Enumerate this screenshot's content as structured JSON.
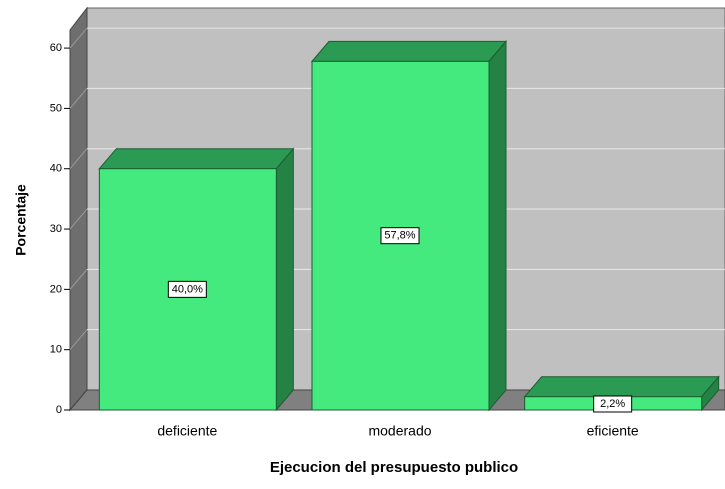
{
  "chart_data": {
    "type": "bar3d",
    "categories": [
      "deficiente",
      "moderado",
      "eficiente"
    ],
    "values": [
      40.0,
      57.8,
      2.2
    ],
    "value_labels": [
      "40,0%",
      "57,8%",
      "2,2%"
    ],
    "color": "#44ea7e",
    "xlabel": "Ejecucion del presupuesto publico",
    "ylabel": "Porcentaje",
    "ylim": [
      0,
      63
    ],
    "yticks": [
      0,
      10,
      20,
      30,
      40,
      50,
      60
    ],
    "grid": true
  }
}
